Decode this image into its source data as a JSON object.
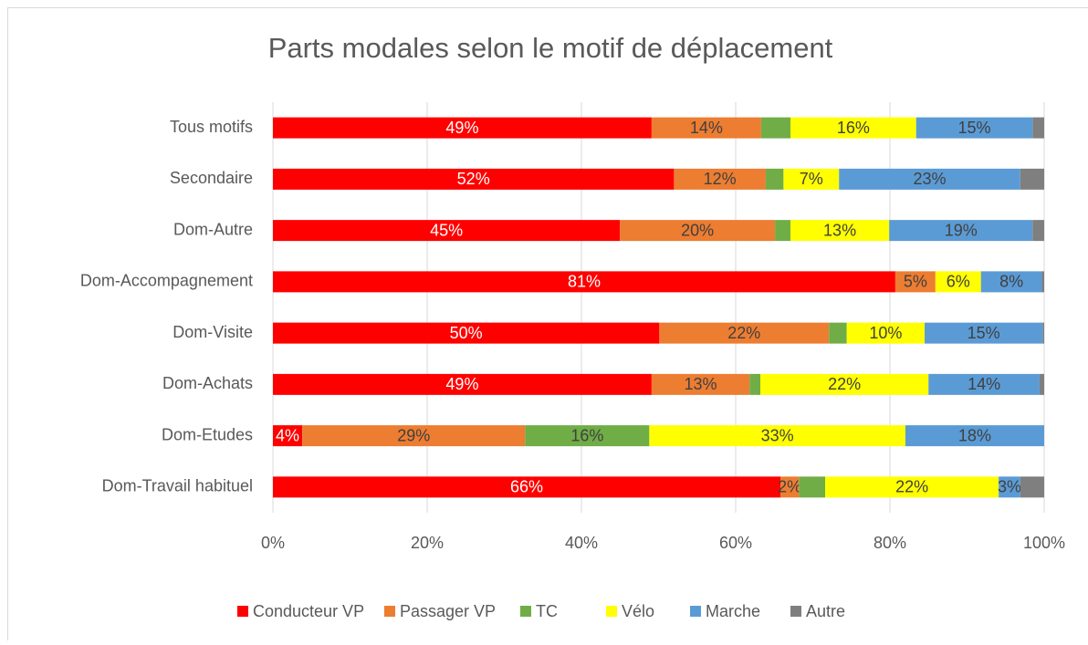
{
  "chart_data": {
    "type": "stacked-barh",
    "title": "Parts modales selon le motif de déplacement",
    "categories": [
      "Tous motifs",
      "Secondaire",
      "Dom-Autre",
      "Dom-Accompagnement",
      "Dom-Visite",
      "Dom-Achats",
      "Dom-Etudes",
      "Dom-Travail habituel"
    ],
    "series": [
      {
        "name": "Conducteur VP",
        "color": "#ff0000",
        "values": [
          49.1,
          52.0,
          45.0,
          80.7,
          50.1,
          49.1,
          3.8,
          65.8
        ],
        "value_labels": [
          "49%",
          "52%",
          "45%",
          "81%",
          "50%",
          "49%",
          "4%",
          "66%"
        ]
      },
      {
        "name": "Passager VP",
        "color": "#ed7d31",
        "values": [
          14.2,
          11.9,
          20.1,
          5.2,
          22.0,
          12.7,
          28.9,
          2.4
        ],
        "value_labels": [
          "14%",
          "12%",
          "20%",
          "5%",
          "22%",
          "13%",
          "29%",
          "2%"
        ]
      },
      {
        "name": "TC",
        "color": "#70ad47",
        "values": [
          3.8,
          2.3,
          2.0,
          0,
          2.3,
          1.4,
          16.1,
          3.4
        ],
        "value_labels": [
          null,
          null,
          null,
          null,
          null,
          null,
          "16%",
          null
        ]
      },
      {
        "name": "Vélo",
        "color": "#ffff00",
        "values": [
          16.3,
          7.2,
          12.8,
          5.9,
          10.1,
          21.8,
          33.2,
          22.5
        ],
        "value_labels": [
          "16%",
          "7%",
          "13%",
          "6%",
          "10%",
          "22%",
          "33%",
          "22%"
        ]
      },
      {
        "name": "Marche",
        "color": "#5b9bd5",
        "values": [
          15.1,
          23.5,
          18.6,
          7.9,
          15.3,
          14.4,
          18.0,
          2.8
        ],
        "value_labels": [
          "15%",
          "23%",
          "19%",
          "8%",
          "15%",
          "14%",
          "18%",
          "3%"
        ]
      },
      {
        "name": "Autre",
        "color": "#7f7f7f",
        "values": [
          1.5,
          3.1,
          1.5,
          0.3,
          0.2,
          0.6,
          0,
          3.1
        ],
        "value_labels": [
          null,
          null,
          null,
          null,
          null,
          null,
          null,
          null
        ]
      }
    ],
    "xlim": [
      0,
      100
    ],
    "xticks": [
      {
        "value": 0,
        "label": "0%"
      },
      {
        "value": 20,
        "label": "20%"
      },
      {
        "value": 40,
        "label": "40%"
      },
      {
        "value": 60,
        "label": "60%"
      },
      {
        "value": 80,
        "label": "80%"
      },
      {
        "value": 100,
        "label": "100%"
      }
    ],
    "grid": true,
    "legend": "bottom"
  }
}
